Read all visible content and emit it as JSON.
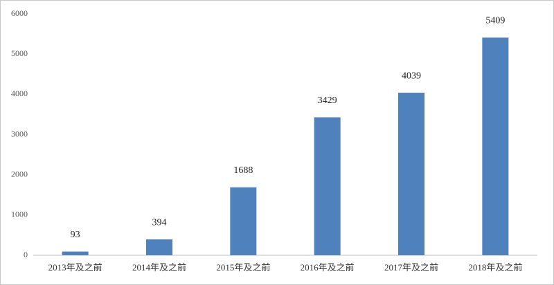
{
  "chart_data": {
    "type": "bar",
    "categories": [
      "2013年及之前",
      "2014年及之前",
      "2015年及之前",
      "2016年及之前",
      "2017年及之前",
      "2018年及之前"
    ],
    "values": [
      93,
      394,
      1688,
      3429,
      4039,
      5409
    ],
    "color": "#4f81bd",
    "ylim": [
      0,
      6000
    ],
    "yticks": [
      0,
      1000,
      2000,
      3000,
      4000,
      5000,
      6000
    ],
    "grid": false
  }
}
